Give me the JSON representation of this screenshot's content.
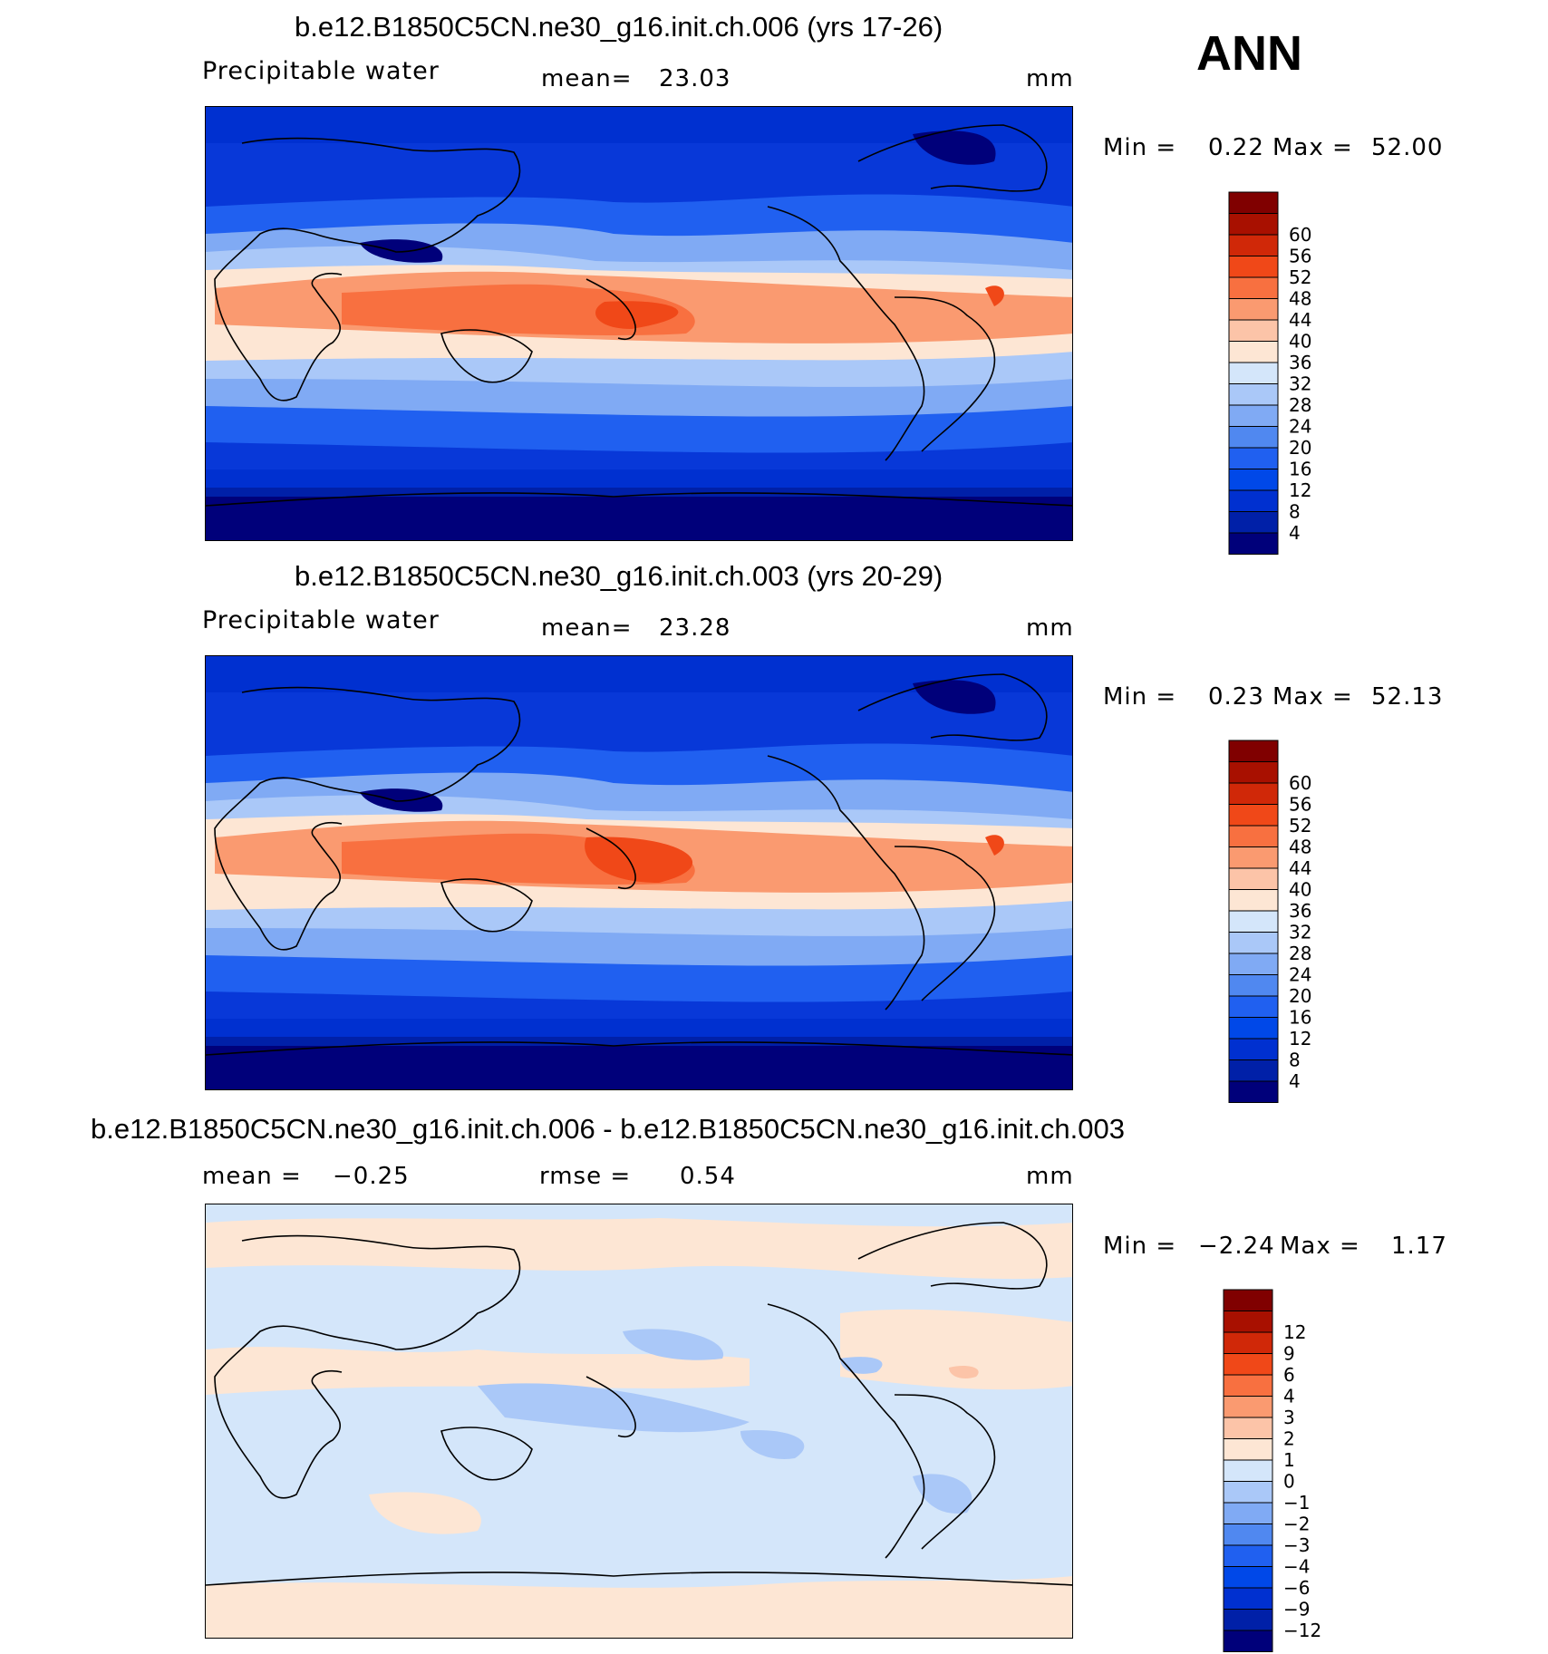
{
  "figure": {
    "season": "ANN",
    "panels": [
      {
        "title": "b.e12.B1850C5CN.ne30_g16.init.ch.006 (yrs 17-26)",
        "variable": "Precipitable water",
        "stat1_label": "mean=",
        "stat1_value": "23.03",
        "stat2_label": "",
        "stat2_value": "",
        "units": "mm",
        "min_label": "Min =",
        "min_value": "0.22",
        "max_label": "Max =",
        "max_value": "52.00",
        "type": "field",
        "colorbar": {
          "colors": [
            "#00007a",
            "#0020a8",
            "#0030d0",
            "#0048e8",
            "#2060f0",
            "#5088f0",
            "#80aaf4",
            "#aac8f8",
            "#d4e6fa",
            "#fde6d4",
            "#fcc4a8",
            "#fa9a70",
            "#f87040",
            "#f04818",
            "#d02808",
            "#a81000",
            "#800000"
          ],
          "labels": [
            "4",
            "8",
            "12",
            "16",
            "20",
            "24",
            "28",
            "32",
            "36",
            "40",
            "44",
            "48",
            "52",
            "56",
            "60"
          ]
        }
      },
      {
        "title": "b.e12.B1850C5CN.ne30_g16.init.ch.003 (yrs 20-29)",
        "variable": "Precipitable water",
        "stat1_label": "mean=",
        "stat1_value": "23.28",
        "stat2_label": "",
        "stat2_value": "",
        "units": "mm",
        "min_label": "Min =",
        "min_value": "0.23",
        "max_label": "Max =",
        "max_value": "52.13",
        "type": "field",
        "colorbar": {
          "colors": [
            "#00007a",
            "#0020a8",
            "#0030d0",
            "#0048e8",
            "#2060f0",
            "#5088f0",
            "#80aaf4",
            "#aac8f8",
            "#d4e6fa",
            "#fde6d4",
            "#fcc4a8",
            "#fa9a70",
            "#f87040",
            "#f04818",
            "#d02808",
            "#a81000",
            "#800000"
          ],
          "labels": [
            "4",
            "8",
            "12",
            "16",
            "20",
            "24",
            "28",
            "32",
            "36",
            "40",
            "44",
            "48",
            "52",
            "56",
            "60"
          ]
        }
      },
      {
        "title": "b.e12.B1850C5CN.ne30_g16.init.ch.006 - b.e12.B1850C5CN.ne30_g16.init.ch.003",
        "variable": "",
        "stat1_label": "mean =",
        "stat1_value": "−0.25",
        "stat2_label": "rmse =",
        "stat2_value": "0.54",
        "units": "mm",
        "min_label": "Min =",
        "min_value": "−2.24",
        "max_label": "Max =",
        "max_value": "1.17",
        "type": "difference",
        "colorbar": {
          "colors": [
            "#00007a",
            "#0020a8",
            "#0030d0",
            "#0048e8",
            "#2060f0",
            "#5088f0",
            "#80aaf4",
            "#aac8f8",
            "#d4e6fa",
            "#fde6d4",
            "#fcc4a8",
            "#fa9a70",
            "#f87040",
            "#f04818",
            "#d02808",
            "#a81000",
            "#800000"
          ],
          "labels": [
            "−12",
            "−9",
            "−6",
            "−4",
            "−3",
            "−2",
            "−1",
            "0",
            "1",
            "2",
            "3",
            "4",
            "6",
            "9",
            "12"
          ]
        }
      }
    ]
  }
}
